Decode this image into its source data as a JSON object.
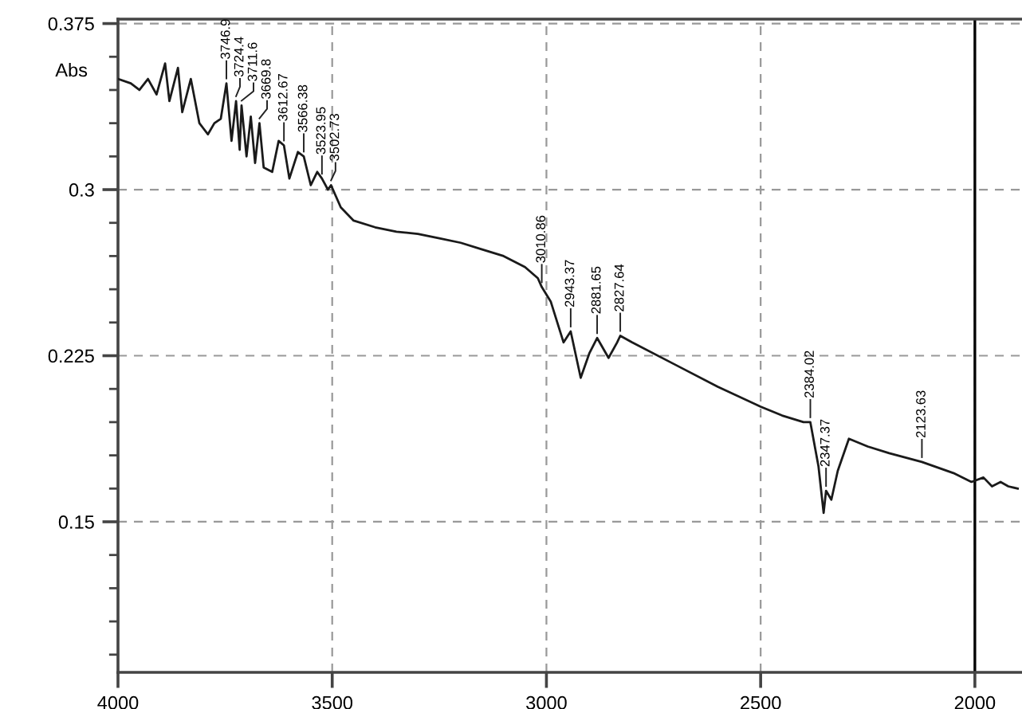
{
  "chart_data": {
    "type": "line",
    "ylabel": "Abs",
    "x": [
      4000,
      3970,
      3950,
      3930,
      3910,
      3890,
      3880,
      3860,
      3850,
      3830,
      3810,
      3790,
      3775,
      3760,
      3746.9,
      3735,
      3724.4,
      3716,
      3711.6,
      3700,
      3690,
      3680,
      3669.8,
      3660,
      3640,
      3625,
      3612.67,
      3600,
      3580,
      3566.38,
      3550,
      3535,
      3523.95,
      3510,
      3502.73,
      3480,
      3450,
      3400,
      3350,
      3300,
      3250,
      3200,
      3150,
      3100,
      3050,
      3020,
      3010.86,
      2990,
      2960,
      2943.37,
      2920,
      2900,
      2881.65,
      2855,
      2835,
      2827.64,
      2800,
      2700,
      2600,
      2500,
      2450,
      2400,
      2384.02,
      2365,
      2353,
      2347.37,
      2335,
      2320,
      2294,
      2250,
      2200,
      2123.63,
      2050,
      2008,
      1980,
      1960,
      1940,
      1922,
      1900
    ],
    "series": [
      {
        "color": "#1a1a1a",
        "values": [
          0.35,
          0.348,
          0.345,
          0.35,
          0.343,
          0.357,
          0.34,
          0.355,
          0.335,
          0.35,
          0.33,
          0.325,
          0.33,
          0.332,
          0.348,
          0.322,
          0.34,
          0.318,
          0.338,
          0.315,
          0.333,
          0.312,
          0.33,
          0.31,
          0.308,
          0.322,
          0.32,
          0.305,
          0.317,
          0.315,
          0.302,
          0.308,
          0.305,
          0.3,
          0.302,
          0.292,
          0.286,
          0.283,
          0.281,
          0.28,
          0.278,
          0.276,
          0.273,
          0.27,
          0.265,
          0.26,
          0.256,
          0.2495,
          0.231,
          0.236,
          0.215,
          0.226,
          0.233,
          0.224,
          0.231,
          0.234,
          0.231,
          0.221,
          0.211,
          0.202,
          0.198,
          0.195,
          0.195,
          0.175,
          0.154,
          0.164,
          0.16,
          0.173,
          0.1875,
          0.184,
          0.181,
          0.177,
          0.172,
          0.168,
          0.17,
          0.166,
          0.168,
          0.166,
          0.165
        ]
      }
    ],
    "xlim": [
      4000,
      1890
    ],
    "ylim": [
      0.082,
      0.377
    ],
    "xticks": [
      4000,
      3500,
      3000,
      2500,
      2000
    ],
    "yticks": [
      0.15,
      0.225,
      0.3,
      0.375
    ],
    "grid": true,
    "line_style": "solid",
    "marker": "none",
    "ref_lines": [
      {
        "axis": "x",
        "value": 2000,
        "color": "#000000",
        "line_style": "solid"
      }
    ],
    "annotations": [
      {
        "text": "3746.9",
        "x": 3746.9,
        "y": 0.348
      },
      {
        "text": "3724.4",
        "x": 3724.4,
        "y": 0.34
      },
      {
        "text": "3711.6",
        "x": 3711.6,
        "y": 0.338
      },
      {
        "text": "3669.8",
        "x": 3669.8,
        "y": 0.33
      },
      {
        "text": "3612.67",
        "x": 3612.67,
        "y": 0.32
      },
      {
        "text": "3566.38",
        "x": 3566.38,
        "y": 0.315
      },
      {
        "text": "3523.95",
        "x": 3523.95,
        "y": 0.305
      },
      {
        "text": "3502.73",
        "x": 3502.73,
        "y": 0.302
      },
      {
        "text": "3010.86",
        "x": 3010.86,
        "y": 0.256
      },
      {
        "text": "2943.37",
        "x": 2943.37,
        "y": 0.236
      },
      {
        "text": "2881.65",
        "x": 2881.65,
        "y": 0.233
      },
      {
        "text": "2827.64",
        "x": 2827.64,
        "y": 0.234
      },
      {
        "text": "2384.02",
        "x": 2384.02,
        "y": 0.195
      },
      {
        "text": "2347.37",
        "x": 2347.37,
        "y": 0.164
      },
      {
        "text": "2123.63",
        "x": 2123.63,
        "y": 0.177
      }
    ]
  }
}
